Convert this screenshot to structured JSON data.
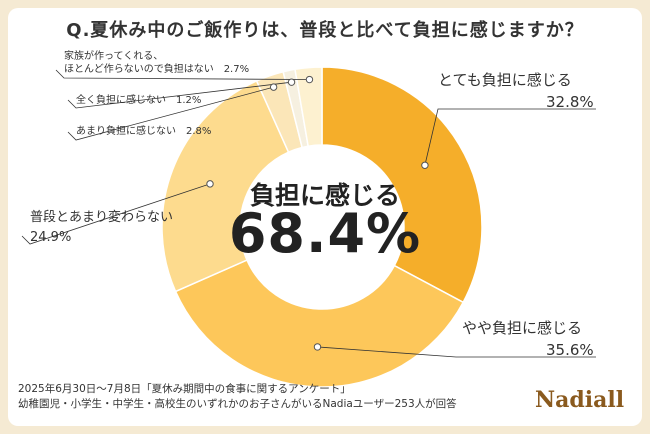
{
  "title": "Q.夏休み中のご飯作りは、普段と比べて負担に感じますか？",
  "center": {
    "label": "負担に感じる",
    "value": "68.4%"
  },
  "chart_data": {
    "type": "pie",
    "categories": [
      "とても負担に感じる",
      "やや負担に感じる",
      "普段とあまり変わらない",
      "あまり負担に感じない",
      "全く負担に感じない",
      "家族が作ってくれる、ほとんど作らないので負担はない"
    ],
    "values": [
      32.8,
      35.6,
      24.9,
      2.8,
      1.2,
      2.7
    ],
    "colors": [
      "#f5ae2a",
      "#fdc75a",
      "#fddb8e",
      "#fbe6b8",
      "#f6f0e0",
      "#fdf1d0"
    ]
  },
  "labels": {
    "s0_name": "とても負担に感じる",
    "s0_pct": "32.8%",
    "s1_name": "やや負担に感じる",
    "s1_pct": "35.6%",
    "s2_name": "普段とあまり変わらない",
    "s2_pct": "24.9%",
    "s3_text": "あまり負担に感じない　2.8%",
    "s4_text": "全く負担に感じない　1.2%",
    "s5_line1": "家族が作ってくれる、",
    "s5_line2": "ほとんど作らないので負担はない　2.7%"
  },
  "footer": {
    "line1": "2025年6月30日〜7月8日「夏休み期間中の食事に関するアンケート」",
    "line2": "幼稚園児・小学生・中学生・高校生のいずれかのお子さんがいるNadiaユーザー253人が回答"
  },
  "logo": "Nadiall"
}
